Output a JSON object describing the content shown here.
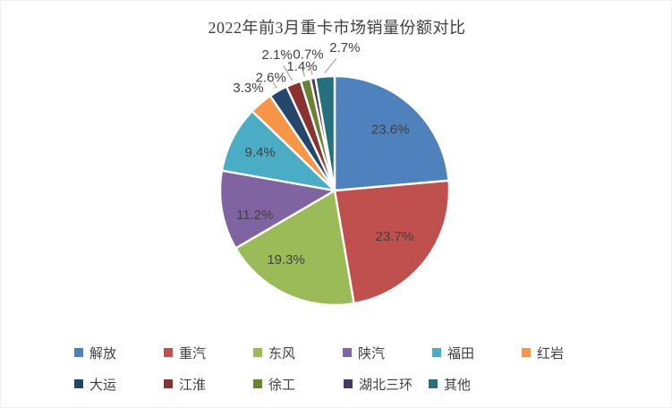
{
  "chart_data": {
    "type": "pie",
    "title": "2022年前3月重卡市场销量份额对比",
    "legend_position": "bottom",
    "start_angle_deg": 0,
    "direction": "clockwise",
    "label_color": "#404040",
    "leader_line_color": "#a6a6a6",
    "slice_border_color": "#ffffff",
    "series": [
      {
        "name": "解放",
        "value": 23.6,
        "label": "23.6%",
        "color": "#4F81BD",
        "label_placement": "inside"
      },
      {
        "name": "重汽",
        "value": 23.7,
        "label": "23.7%",
        "color": "#C0504D",
        "label_placement": "inside"
      },
      {
        "name": "东风",
        "value": 19.3,
        "label": "19.3%",
        "color": "#9BBB59",
        "label_placement": "inside"
      },
      {
        "name": "陕汽",
        "value": 11.2,
        "label": "11.2%",
        "color": "#8064A2",
        "label_placement": "inside"
      },
      {
        "name": "福田",
        "value": 9.4,
        "label": "9.4%",
        "color": "#4BACC6",
        "label_placement": "inside"
      },
      {
        "name": "红岩",
        "value": 3.3,
        "label": "3.3%",
        "color": "#F79646",
        "label_placement": "outside"
      },
      {
        "name": "大运",
        "value": 2.6,
        "label": "2.6%",
        "color": "#25476B",
        "label_placement": "outside"
      },
      {
        "name": "江淮",
        "value": 2.1,
        "label": "2.1%",
        "color": "#8A3230",
        "label_placement": "outside"
      },
      {
        "name": "徐工",
        "value": 1.4,
        "label": "1.4%",
        "color": "#6B8233",
        "label_placement": "outside"
      },
      {
        "name": "湖北三环",
        "value": 0.7,
        "label": "0.7%",
        "color": "#473761",
        "label_placement": "outside"
      },
      {
        "name": "其他",
        "value": 2.7,
        "label": "2.7%",
        "color": "#25707F",
        "label_placement": "outside"
      }
    ]
  }
}
